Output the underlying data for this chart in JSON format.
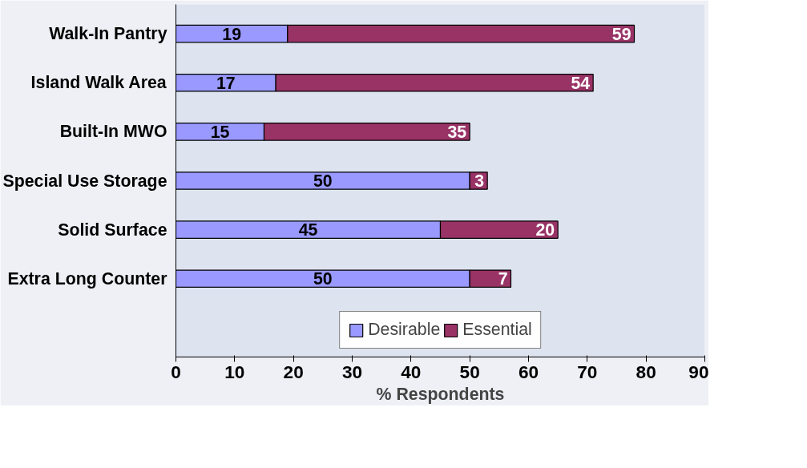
{
  "chart_data": {
    "type": "bar",
    "orientation": "horizontal",
    "stacked": true,
    "xlabel": "% Respondents",
    "categories": [
      "Walk-In Pantry",
      "Island Walk Area",
      "Built-In MWO",
      "Special Use Storage",
      "Solid Surface",
      "Extra Long Counter"
    ],
    "series": [
      {
        "name": "Desirable",
        "color": "#9999ff",
        "values": [
          19,
          17,
          15,
          50,
          45,
          50
        ]
      },
      {
        "name": "Essential",
        "color": "#993366",
        "values": [
          59,
          54,
          35,
          3,
          20,
          7
        ]
      }
    ],
    "xlim": [
      0,
      90
    ],
    "xticks": [
      0,
      10,
      20,
      30,
      40,
      50,
      60,
      70,
      80,
      90
    ],
    "grid": false,
    "legend": "bottom",
    "data_labels": true
  }
}
